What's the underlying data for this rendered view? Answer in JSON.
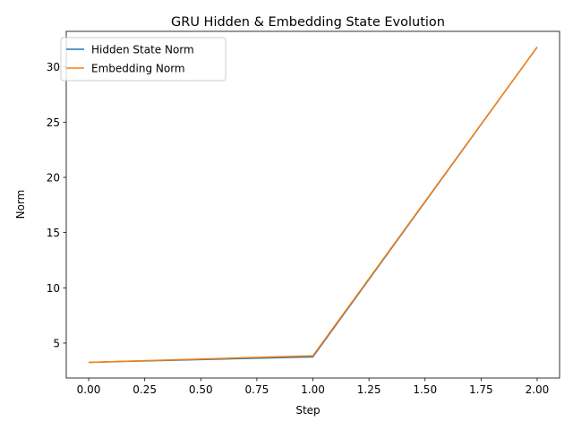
{
  "chart_data": {
    "type": "line",
    "title": "GRU Hidden & Embedding State Evolution",
    "xlabel": "Step",
    "ylabel": "Norm",
    "x": [
      0,
      1,
      2
    ],
    "series": [
      {
        "name": "Hidden State Norm",
        "color": "#1f77b4",
        "values": [
          3.25,
          3.75,
          31.8
        ]
      },
      {
        "name": "Embedding Norm",
        "color": "#ff7f0e",
        "values": [
          3.25,
          3.85,
          31.8
        ]
      }
    ],
    "xlim": [
      -0.1,
      2.1
    ],
    "ylim": [
      1.83,
      33.22
    ],
    "xticks": [
      0.0,
      0.25,
      0.5,
      0.75,
      1.0,
      1.25,
      1.5,
      1.75,
      2.0
    ],
    "xtick_labels": [
      "0.00",
      "0.25",
      "0.50",
      "0.75",
      "1.00",
      "1.25",
      "1.50",
      "1.75",
      "2.00"
    ],
    "yticks": [
      5,
      10,
      15,
      20,
      25,
      30
    ],
    "ytick_labels": [
      "5",
      "10",
      "15",
      "20",
      "25",
      "30"
    ],
    "grid": false,
    "legend_position": "top-left"
  }
}
